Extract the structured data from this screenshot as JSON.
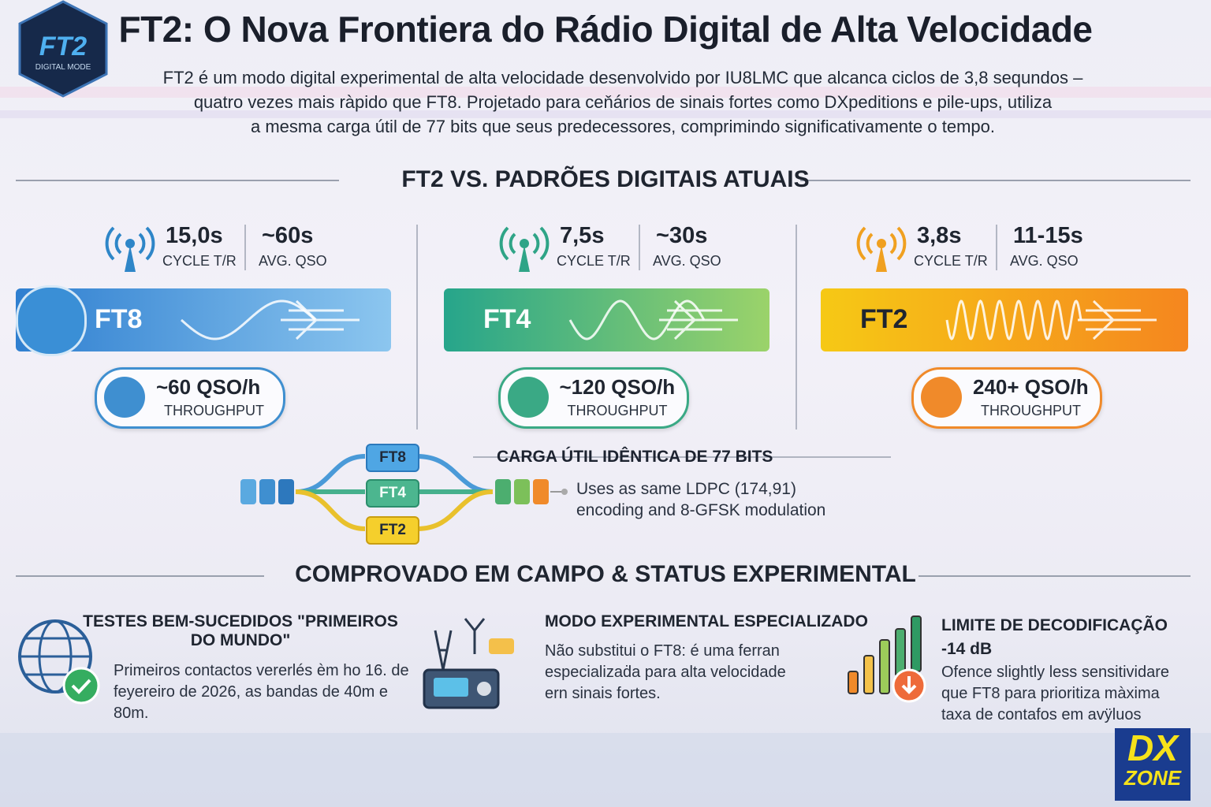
{
  "logo": {
    "name": "FT2",
    "subtitle": "DIGITAL MODE"
  },
  "header": {
    "title": "FT2: O Nova Frontiera do Rádio Digital de Alta Velocidade",
    "intro": [
      "FT2 é um modo digital experimental de alta velocidade desenvolvido por IU8LMC que alcanca ciclos de 3,8 sequndos –",
      "quatro vezes mais ràpido que FT8. Projetado para ceňários de sinais fortes como DXpeditions e pile-ups, utiliza",
      "a mesma carga útil de 77 bits que seus predecessores, comprimindo significativamente o tempo."
    ]
  },
  "comparison": {
    "title": "FT2 VS. PADRÕES DIGITAIS ATUAIS",
    "modes": [
      {
        "name": "FT8",
        "cycle": "15,0s",
        "cycle_label": "CYCLE T/R",
        "avg_qso": "~60s",
        "avg_qso_label": "AVG. QSO",
        "throughput": "~60 QSO/h",
        "throughput_label": "THROUGHPUT"
      },
      {
        "name": "FT4",
        "cycle": "7,5s",
        "cycle_label": "CYCLE T/R",
        "avg_qso": "~30s",
        "avg_qso_label": "AVG. QSO",
        "throughput": "~120 QSO/h",
        "throughput_label": "THROUGHPUT"
      },
      {
        "name": "FT2",
        "cycle": "3,8s",
        "cycle_label": "CYCLE T/R",
        "avg_qso": "11-15s",
        "avg_qso_label": "AVG. QSO",
        "throughput": "240+ QSO/h",
        "throughput_label": "THROUGHPUT"
      }
    ]
  },
  "payload": {
    "paths": [
      "FT8",
      "FT4",
      "FT2"
    ],
    "title": "CARGA ÚTIL IDÊNTICA DE 77 BITS",
    "note": [
      "Uses as same LDPC (174,91)",
      "encoding and 8-GFSK modulation"
    ]
  },
  "field": {
    "title": "COMPROVADO EM CAMPO & STATUS EXPERIMENTAL",
    "cards": [
      {
        "title": [
          "TESTES BEM-SUCEDIDOS \"PRIMEIROS",
          "DO MUNDO\""
        ],
        "body": [
          "Primeiros contactos vererlés èm ho 16. de",
          "feyereiro de 2026, as bandas de 40m e",
          "80m."
        ]
      },
      {
        "title": [
          "MODO EXPERIMENTAL ESPECIALIZADO"
        ],
        "body": [
          "Não substitui o FT8: é uma ferran",
          "especializaḋa para alta velocidade",
          "ern sinais fortes."
        ]
      },
      {
        "title": [
          "LIMITE DE DECODIFICAÇÃO",
          "-14 dB"
        ],
        "body": [
          "Ofence slightly less sensitividare",
          "que FT8 para prioritiza màxima",
          "taxa de contafos em avÿluos"
        ]
      }
    ]
  },
  "brand": {
    "line1": "DX",
    "line2": "ZONE"
  }
}
